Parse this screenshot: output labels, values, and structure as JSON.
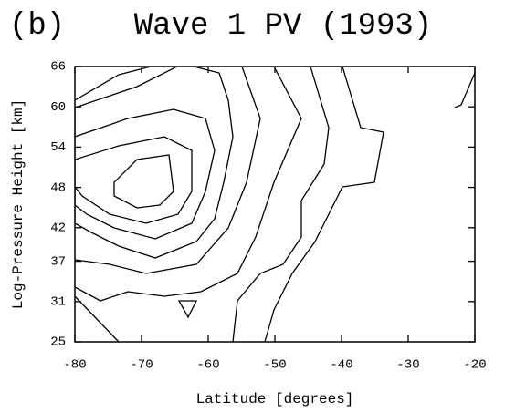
{
  "chart_data": {
    "type": "contour",
    "panel_label": "(b)",
    "title": "Wave 1 PV (1993)",
    "x_label": "Latitude [degrees]",
    "y_label": "Log-Pressure Height [km]",
    "xlim": [
      -80,
      -20
    ],
    "xticks": [
      -80,
      -70,
      -60,
      -50,
      -40,
      -30,
      -20
    ],
    "ylim": [
      25,
      66
    ],
    "yticks": [
      25,
      31,
      37,
      42,
      48,
      54,
      60,
      66
    ]
  }
}
